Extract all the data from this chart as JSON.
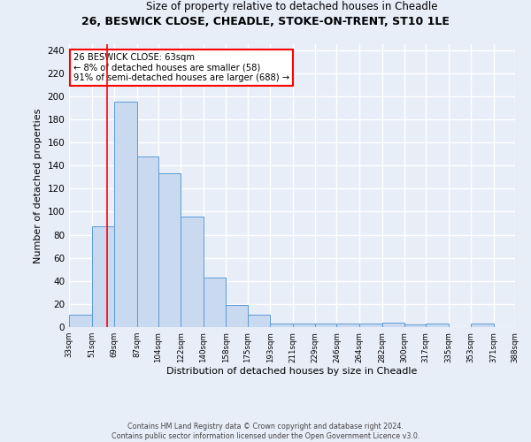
{
  "title1": "26, BESWICK CLOSE, CHEADLE, STOKE-ON-TRENT, ST10 1LE",
  "title2": "Size of property relative to detached houses in Cheadle",
  "xlabel": "Distribution of detached houses by size in Cheadle",
  "ylabel": "Number of detached properties",
  "bins": [
    33,
    51,
    69,
    87,
    104,
    122,
    140,
    158,
    175,
    193,
    211,
    229,
    246,
    264,
    282,
    300,
    317,
    335,
    353,
    371,
    388
  ],
  "counts": [
    11,
    87,
    195,
    148,
    133,
    96,
    43,
    19,
    11,
    3,
    3,
    3,
    3,
    3,
    4,
    2,
    3,
    0,
    3,
    0
  ],
  "bar_color": "#c9d9f0",
  "bar_edge_color": "#5b9bd5",
  "vline_x": 63,
  "vline_color": "red",
  "annotation_text": "26 BESWICK CLOSE: 63sqm\n← 8% of detached houses are smaller (58)\n91% of semi-detached houses are larger (688) →",
  "annotation_box_color": "white",
  "annotation_box_edge": "red",
  "ylim": [
    0,
    245
  ],
  "yticks": [
    0,
    20,
    40,
    60,
    80,
    100,
    120,
    140,
    160,
    180,
    200,
    220,
    240
  ],
  "tick_labels": [
    "33sqm",
    "51sqm",
    "69sqm",
    "87sqm",
    "104sqm",
    "122sqm",
    "140sqm",
    "158sqm",
    "175sqm",
    "193sqm",
    "211sqm",
    "229sqm",
    "246sqm",
    "264sqm",
    "282sqm",
    "300sqm",
    "317sqm",
    "335sqm",
    "353sqm",
    "371sqm",
    "388sqm"
  ],
  "footer": "Contains HM Land Registry data © Crown copyright and database right 2024.\nContains public sector information licensed under the Open Government Licence v3.0.",
  "background_color": "#e8eef8",
  "grid_color": "white"
}
